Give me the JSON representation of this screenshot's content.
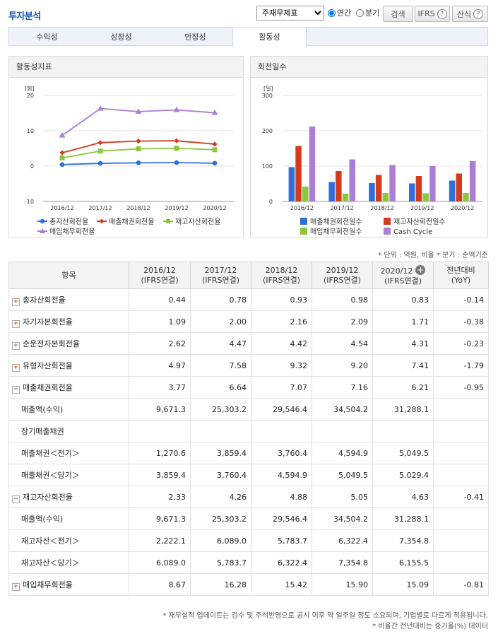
{
  "header": {
    "title": "투자분석",
    "report_select_value": "주재무제표",
    "radio_annual": "연간",
    "radio_quarter": "분기",
    "search_button": "검색",
    "ifrs_button": "IFRS",
    "formula_button": "산식",
    "help_glyph": "?"
  },
  "tabs": [
    "수익성",
    "성장성",
    "안정성",
    "활동성"
  ],
  "active_tab": 3,
  "left_panel": {
    "title": "활동성지표",
    "unit": "[회]",
    "legend": [
      "총자산회전율",
      "매출채권회전율",
      "재고자산회전율",
      "매입채무회전율"
    ]
  },
  "right_panel": {
    "title": "회전일수",
    "unit": "[일]",
    "legend": [
      "매출채권회전일수",
      "재고자산회전일수",
      "매입채무회전일수",
      "Cash Cycle"
    ]
  },
  "chart_data": [
    {
      "type": "line",
      "ylabel": "[회]",
      "ylim": [
        -10,
        20
      ],
      "yticks": [
        -10,
        0,
        10,
        20
      ],
      "categories": [
        "2016/12",
        "2017/12",
        "2018/12",
        "2019/12",
        "2020/12"
      ],
      "series": [
        {
          "name": "총자산회전율",
          "values": [
            0.44,
            0.78,
            0.93,
            0.98,
            0.83
          ],
          "color": "#2f6fdc",
          "marker": "circle"
        },
        {
          "name": "매출채권회전율",
          "values": [
            3.77,
            6.64,
            7.07,
            7.16,
            6.21
          ],
          "color": "#d23c1e",
          "marker": "diamond"
        },
        {
          "name": "재고자산회전율",
          "values": [
            2.33,
            4.26,
            4.88,
            5.05,
            4.63
          ],
          "color": "#8cc63f",
          "marker": "square"
        },
        {
          "name": "매입채무회전율",
          "values": [
            8.67,
            16.28,
            15.42,
            15.9,
            15.09
          ],
          "color": "#a97fd6",
          "marker": "triangle"
        }
      ],
      "grid": true,
      "legend": "bottom"
    },
    {
      "type": "bar",
      "ylabel": "[일]",
      "ylim": [
        0,
        300
      ],
      "yticks": [
        0,
        100,
        200,
        300
      ],
      "categories": [
        "2016/12",
        "2017/12",
        "2018/12",
        "2019/12",
        "2020/12"
      ],
      "series": [
        {
          "name": "매출채권회전일수",
          "values": [
            97,
            55,
            52,
            51,
            59
          ],
          "color": "#2f6fdc"
        },
        {
          "name": "재고자산회전일수",
          "values": [
            157,
            86,
            75,
            72,
            79
          ],
          "color": "#d23c1e"
        },
        {
          "name": "매입채무회전일수",
          "values": [
            42,
            22,
            24,
            23,
            24
          ],
          "color": "#8cc63f"
        },
        {
          "name": "Cash Cycle",
          "values": [
            212,
            119,
            103,
            100,
            114
          ],
          "color": "#a97fd6"
        }
      ],
      "grid": true,
      "legend": "bottom"
    }
  ],
  "unit_note": "* 단위 : 억원, 비율   * 분기 : 순액기준",
  "table": {
    "head_label": "항목",
    "columns": [
      {
        "year": "2016/12",
        "basis": "(IFRS연결)"
      },
      {
        "year": "2017/12",
        "basis": "(IFRS연결)"
      },
      {
        "year": "2018/12",
        "basis": "(IFRS연결)"
      },
      {
        "year": "2019/12",
        "basis": "(IFRS연결)"
      },
      {
        "year": "2020/12",
        "basis": "(IFRS연결)"
      }
    ],
    "yoy_head1": "전년대비",
    "yoy_head2": "(YoY)",
    "rows": [
      {
        "label": "총자산회전율",
        "toggle": "plus",
        "values": [
          "0.44",
          "0.78",
          "0.93",
          "0.98",
          "0.83"
        ],
        "yoy": "-0.14"
      },
      {
        "label": "자기자본회전율",
        "toggle": "plus",
        "values": [
          "1.09",
          "2.00",
          "2.16",
          "2.09",
          "1.71"
        ],
        "yoy": "-0.38"
      },
      {
        "label": "순운전자본회전율",
        "toggle": "plus",
        "values": [
          "2.62",
          "4.47",
          "4.42",
          "4.54",
          "4.31"
        ],
        "yoy": "-0.23"
      },
      {
        "label": "유형자산회전율",
        "toggle": "plus",
        "values": [
          "4.97",
          "7.58",
          "9.32",
          "9.20",
          "7.41"
        ],
        "yoy": "-1.79"
      },
      {
        "label": "매출채권회전율",
        "toggle": "minus",
        "values": [
          "3.77",
          "6.64",
          "7.07",
          "7.16",
          "6.21"
        ],
        "yoy": "-0.95"
      },
      {
        "label": "매출액(수익)",
        "toggle": "",
        "values": [
          "9,671.3",
          "25,303.2",
          "29,546.4",
          "34,504.2",
          "31,288.1"
        ],
        "yoy": ""
      },
      {
        "label": "장기매출채권",
        "toggle": "",
        "values": [
          "",
          "",
          "",
          "",
          ""
        ],
        "yoy": ""
      },
      {
        "label": "매출채권＜전기＞",
        "toggle": "",
        "values": [
          "1,270.6",
          "3,859.4",
          "3,760.4",
          "4,594.9",
          "5,049.5"
        ],
        "yoy": ""
      },
      {
        "label": "매출채권＜당기＞",
        "toggle": "",
        "values": [
          "3,859.4",
          "3,760.4",
          "4,594.9",
          "5,049.5",
          "5,029.4"
        ],
        "yoy": ""
      },
      {
        "label": "재고자산회전율",
        "toggle": "minus",
        "values": [
          "2.33",
          "4.26",
          "4.88",
          "5.05",
          "4.63"
        ],
        "yoy": "-0.41"
      },
      {
        "label": "매출액(수익)",
        "toggle": "",
        "values": [
          "9,671.3",
          "25,303.2",
          "29,546.4",
          "34,504.2",
          "31,288.1"
        ],
        "yoy": ""
      },
      {
        "label": "재고자산＜전기＞",
        "toggle": "",
        "values": [
          "2,222.1",
          "6,089.0",
          "5,783.7",
          "6,322.4",
          "7,354.8"
        ],
        "yoy": ""
      },
      {
        "label": "재고자산＜당기＞",
        "toggle": "",
        "values": [
          "6,089.0",
          "5,783.7",
          "6,322.4",
          "7,354.8",
          "6,155.5"
        ],
        "yoy": ""
      },
      {
        "label": "매입채무회전율",
        "toggle": "plus",
        "values": [
          "8.67",
          "16.28",
          "15.42",
          "15.90",
          "15.09"
        ],
        "yoy": "-0.81"
      }
    ]
  },
  "footnotes": [
    "* 재무실적 업데이트는 검수 및 주석반영으로 공시 이후 약 일주일 정도 소요되며, 기업별로 다르게 적용됩니다.",
    "* 비율간 전년대비는 증가율(%) 데이터"
  ],
  "icons": {
    "plus_toggle": "+",
    "minus_toggle": "−",
    "column_add": "+"
  }
}
